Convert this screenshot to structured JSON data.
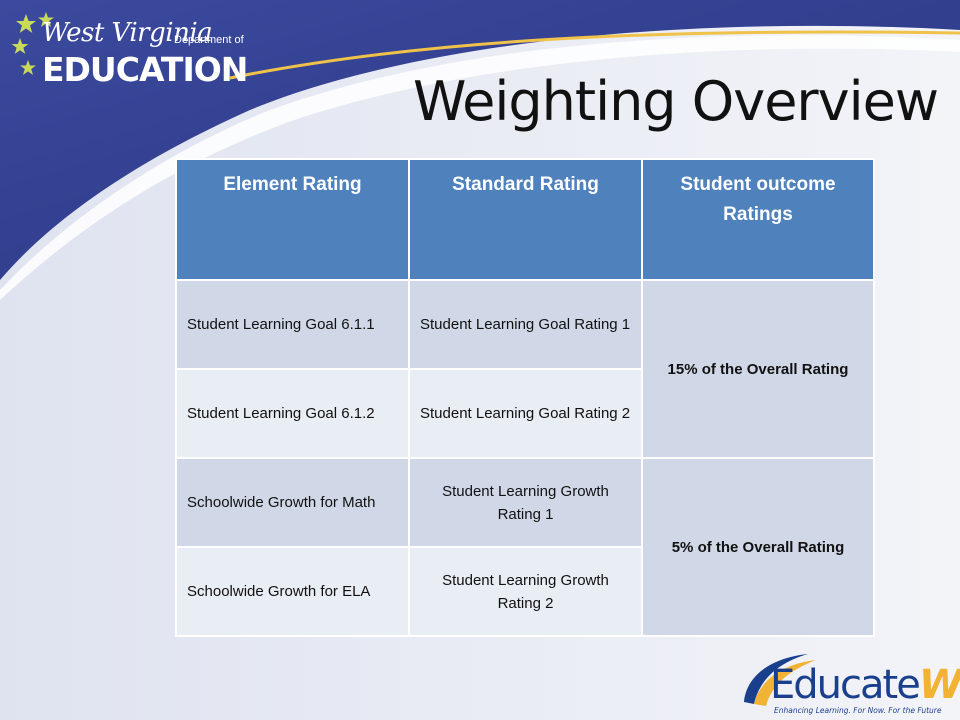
{
  "logo": {
    "script_text": "West Virginia",
    "dept_text": "Department of",
    "edu_text": "EDUCATION"
  },
  "slide": {
    "title": "Weighting Overview"
  },
  "table": {
    "headers": [
      "Element Rating",
      "Standard Rating",
      "Student outcome Ratings"
    ],
    "rows": [
      {
        "element": "Student Learning Goal 6.1.1",
        "standard": "Student Learning Goal Rating 1"
      },
      {
        "element": "Student Learning Goal 6.1.2",
        "standard": "Student Learning Goal Rating 2"
      },
      {
        "element": "Schoolwide Growth for Math",
        "standard": "Student Learning Growth Rating 1"
      },
      {
        "element": "Schoolwide Growth for ELA",
        "standard": "Student Learning Growth Rating 2"
      }
    ],
    "outcomes": [
      "15% of the Overall Rating",
      "5% of the Overall Rating"
    ]
  },
  "footer_logo": {
    "word": "Educate",
    "word_accent": "WV",
    "tagline": "Enhancing Learning. For Now. For the Future"
  },
  "colors": {
    "header_blue": "#4f81bd",
    "row_dark": "#d0d8e8",
    "row_light": "#e9edf4",
    "banner_navy": "#2e3a8c"
  }
}
